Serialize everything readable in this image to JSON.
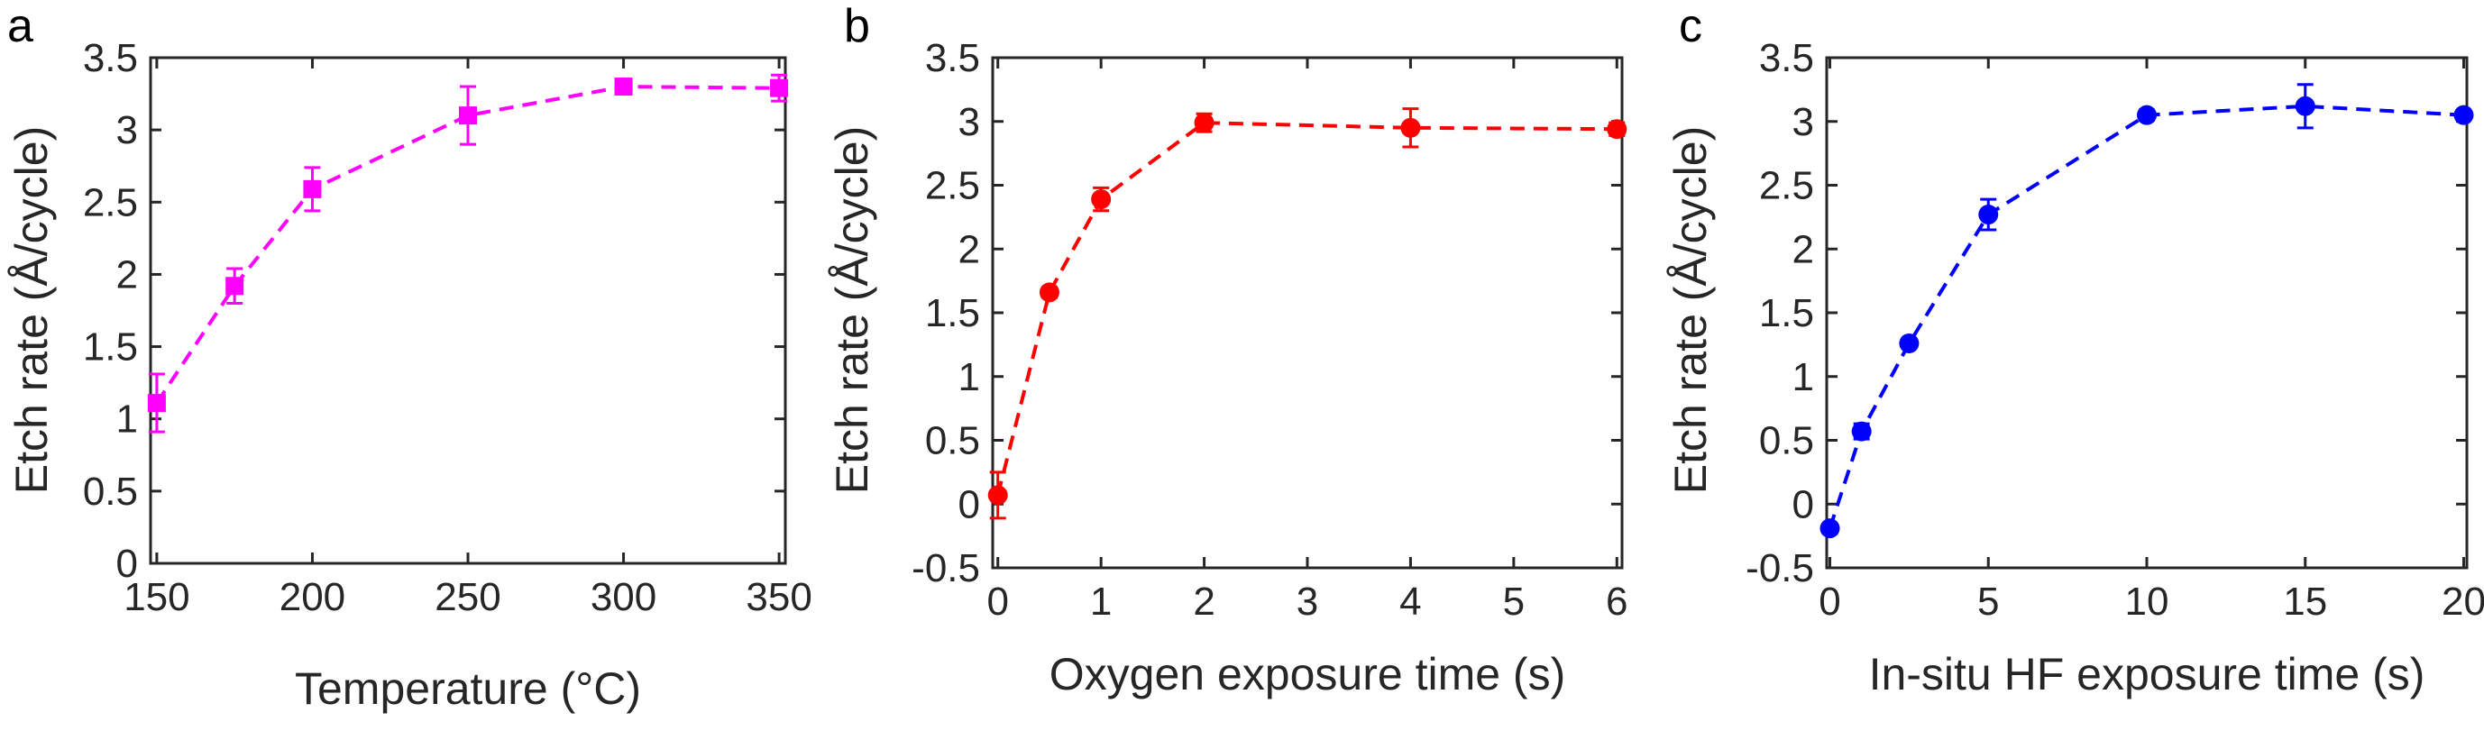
{
  "chart_data": [
    {
      "panel_label": "a",
      "type": "line",
      "marker": "square",
      "line_style": "dashed",
      "color": "#ff00ff",
      "xlabel": "Temperature (°C)",
      "ylabel": "Etch rate (Å/cycle)",
      "xlim": [
        148,
        352
      ],
      "ylim": [
        0,
        3.5
      ],
      "xticks": [
        150,
        200,
        250,
        300,
        350
      ],
      "xtick_labels": [
        "150",
        "200",
        "250",
        "300",
        "350"
      ],
      "yticks": [
        0,
        0.5,
        1,
        1.5,
        2,
        2.5,
        3,
        3.5
      ],
      "ytick_labels": [
        "0",
        "0.5",
        "1",
        "1.5",
        "2",
        "2.5",
        "3",
        "3.5"
      ],
      "grid": false,
      "series": [
        {
          "x": [
            150,
            175,
            200,
            250,
            300,
            350
          ],
          "y": [
            1.11,
            1.92,
            2.59,
            3.1,
            3.3,
            3.29
          ],
          "err": [
            0.2,
            0.12,
            0.15,
            0.2,
            0.05,
            0.09
          ]
        }
      ]
    },
    {
      "panel_label": "b",
      "type": "line",
      "marker": "circle",
      "line_style": "dashed",
      "color": "#ff0000",
      "xlabel": "Oxygen exposure time (s)",
      "ylabel": "Etch rate (Å/cycle)",
      "xlim": [
        -0.05,
        6.05
      ],
      "ylim": [
        -0.5,
        3.5
      ],
      "xticks": [
        0,
        1,
        2,
        3,
        4,
        5,
        6
      ],
      "xtick_labels": [
        "0",
        "1",
        "2",
        "3",
        "4",
        "5",
        "6"
      ],
      "yticks": [
        -0.5,
        0,
        0.5,
        1,
        1.5,
        2,
        2.5,
        3,
        3.5
      ],
      "ytick_labels": [
        "-0.5",
        "0",
        "0.5",
        "1",
        "1.5",
        "2",
        "2.5",
        "3",
        "3.5"
      ],
      "grid": false,
      "series": [
        {
          "x": [
            0,
            0.5,
            1,
            2,
            4,
            6
          ],
          "y": [
            0.07,
            1.66,
            2.39,
            2.99,
            2.95,
            2.94
          ],
          "err": [
            0.18,
            0.04,
            0.09,
            0.07,
            0.15,
            0.05
          ]
        }
      ]
    },
    {
      "panel_label": "c",
      "type": "line",
      "marker": "circle",
      "line_style": "dashed",
      "color": "#0000ff",
      "xlabel": "In-situ HF exposure time (s)",
      "ylabel": "Etch rate (Å/cycle)",
      "xlim": [
        -0.1,
        20.1
      ],
      "ylim": [
        -0.5,
        3.5
      ],
      "xticks": [
        0,
        5,
        10,
        15,
        20
      ],
      "xtick_labels": [
        "0",
        "5",
        "10",
        "15",
        "20"
      ],
      "yticks": [
        -0.5,
        0,
        0.5,
        1,
        1.5,
        2,
        2.5,
        3,
        3.5
      ],
      "ytick_labels": [
        "-0.5",
        "0",
        "0.5",
        "1",
        "1.5",
        "2",
        "2.5",
        "3",
        "3.5"
      ],
      "grid": false,
      "series": [
        {
          "x": [
            0,
            1,
            2.5,
            5,
            10,
            15,
            20
          ],
          "y": [
            -0.19,
            0.57,
            1.26,
            2.27,
            3.05,
            3.12,
            3.05
          ],
          "err": [
            0.03,
            0.06,
            0.03,
            0.12,
            0.04,
            0.17,
            0.03
          ]
        }
      ]
    }
  ]
}
